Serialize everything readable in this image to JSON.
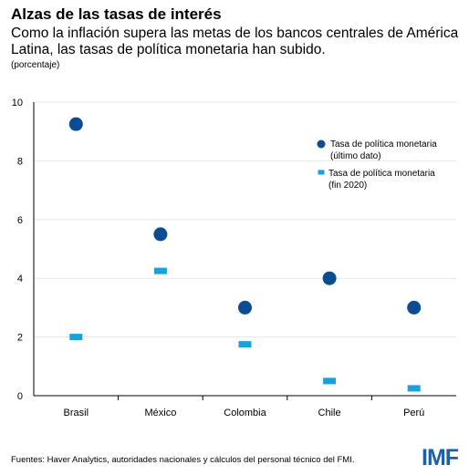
{
  "header": {
    "title": "Alzas de las tasas de interés",
    "subtitle": "Como la inflación supera las metas de los bancos centrales de América Latina, las tasas de política monetaria han subido.",
    "unit": "(porcentaje)"
  },
  "footer": {
    "source": "Fuentes: Haver Analytics, autoridades nacionales y cálculos del personal técnico del FMI.",
    "logo": "IMF"
  },
  "chart_data": {
    "type": "scatter",
    "categories": [
      "Brasil",
      "México",
      "Colombia",
      "Chile",
      "Perú"
    ],
    "ylim": [
      0,
      10
    ],
    "yticks": [
      0,
      2,
      4,
      6,
      8,
      10
    ],
    "grid": true,
    "legend_position": "top-right",
    "series": [
      {
        "name": "Tasa de política monetaria (último dato)",
        "legend_lines": [
          "Tasa de política monetaria",
          "(último dato)"
        ],
        "marker": "circle",
        "color": "#0b4d92",
        "values": [
          9.25,
          5.5,
          3.0,
          4.0,
          3.0
        ]
      },
      {
        "name": "Tasa de política monetaria (fin 2020)",
        "legend_lines": [
          "Tasa de política monetaria",
          "(fin 2020)"
        ],
        "marker": "dash",
        "color": "#1aa0dc",
        "values": [
          2.0,
          4.25,
          1.75,
          0.5,
          0.25
        ]
      }
    ]
  }
}
